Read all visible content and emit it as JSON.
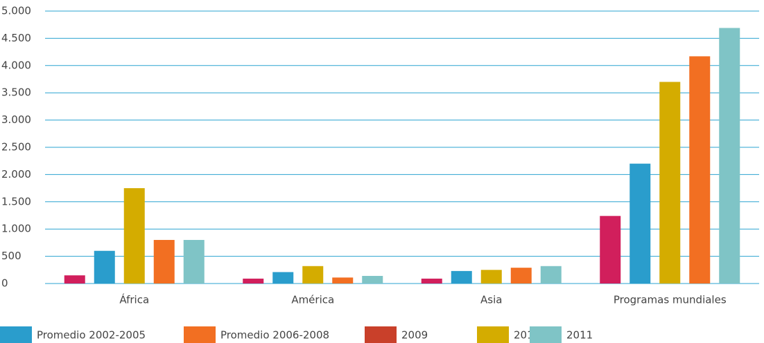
{
  "chart_data": {
    "type": "bar",
    "categories": [
      "África",
      "América",
      "Asia",
      "Programas mundiales"
    ],
    "series": [
      {
        "name": "Promedio 2002-2005",
        "color": "#d11f5c",
        "legend_color": "#2a9dcc",
        "values": [
          150,
          90,
          90,
          1240
        ]
      },
      {
        "name": "Promedio 2006-2008",
        "color": "#2a9dcc",
        "legend_color": "#f26f22",
        "values": [
          600,
          210,
          230,
          2200
        ]
      },
      {
        "name": "2009",
        "color": "#d4ac00",
        "legend_color": "#c9402a",
        "values": [
          1750,
          320,
          250,
          3700
        ]
      },
      {
        "name": "2010",
        "color": "#f26f22",
        "legend_color": "#d4ac00",
        "values": [
          800,
          110,
          290,
          4170
        ]
      },
      {
        "name": "2011",
        "color": "#7fc4c6",
        "legend_color": "#7fc4c6",
        "values": [
          800,
          140,
          320,
          4690
        ]
      }
    ],
    "ylim": [
      0,
      5000
    ],
    "yticks": [
      0,
      500,
      {
        "value": 1000,
        "label": "1.000"
      },
      {
        "value": 1500,
        "label": "1.500"
      },
      {
        "value": 2000,
        "label": "2.000"
      },
      {
        "value": 2500,
        "label": "2.500"
      },
      {
        "value": 3000,
        "label": "3.000"
      },
      {
        "value": 3500,
        "label": "3.500"
      },
      {
        "value": 4000,
        "label": "4.000"
      },
      {
        "value": 4500,
        "label": "4.500"
      },
      {
        "value": 5000,
        "label": "5.000"
      }
    ],
    "grid": true,
    "legend": "bottom"
  }
}
